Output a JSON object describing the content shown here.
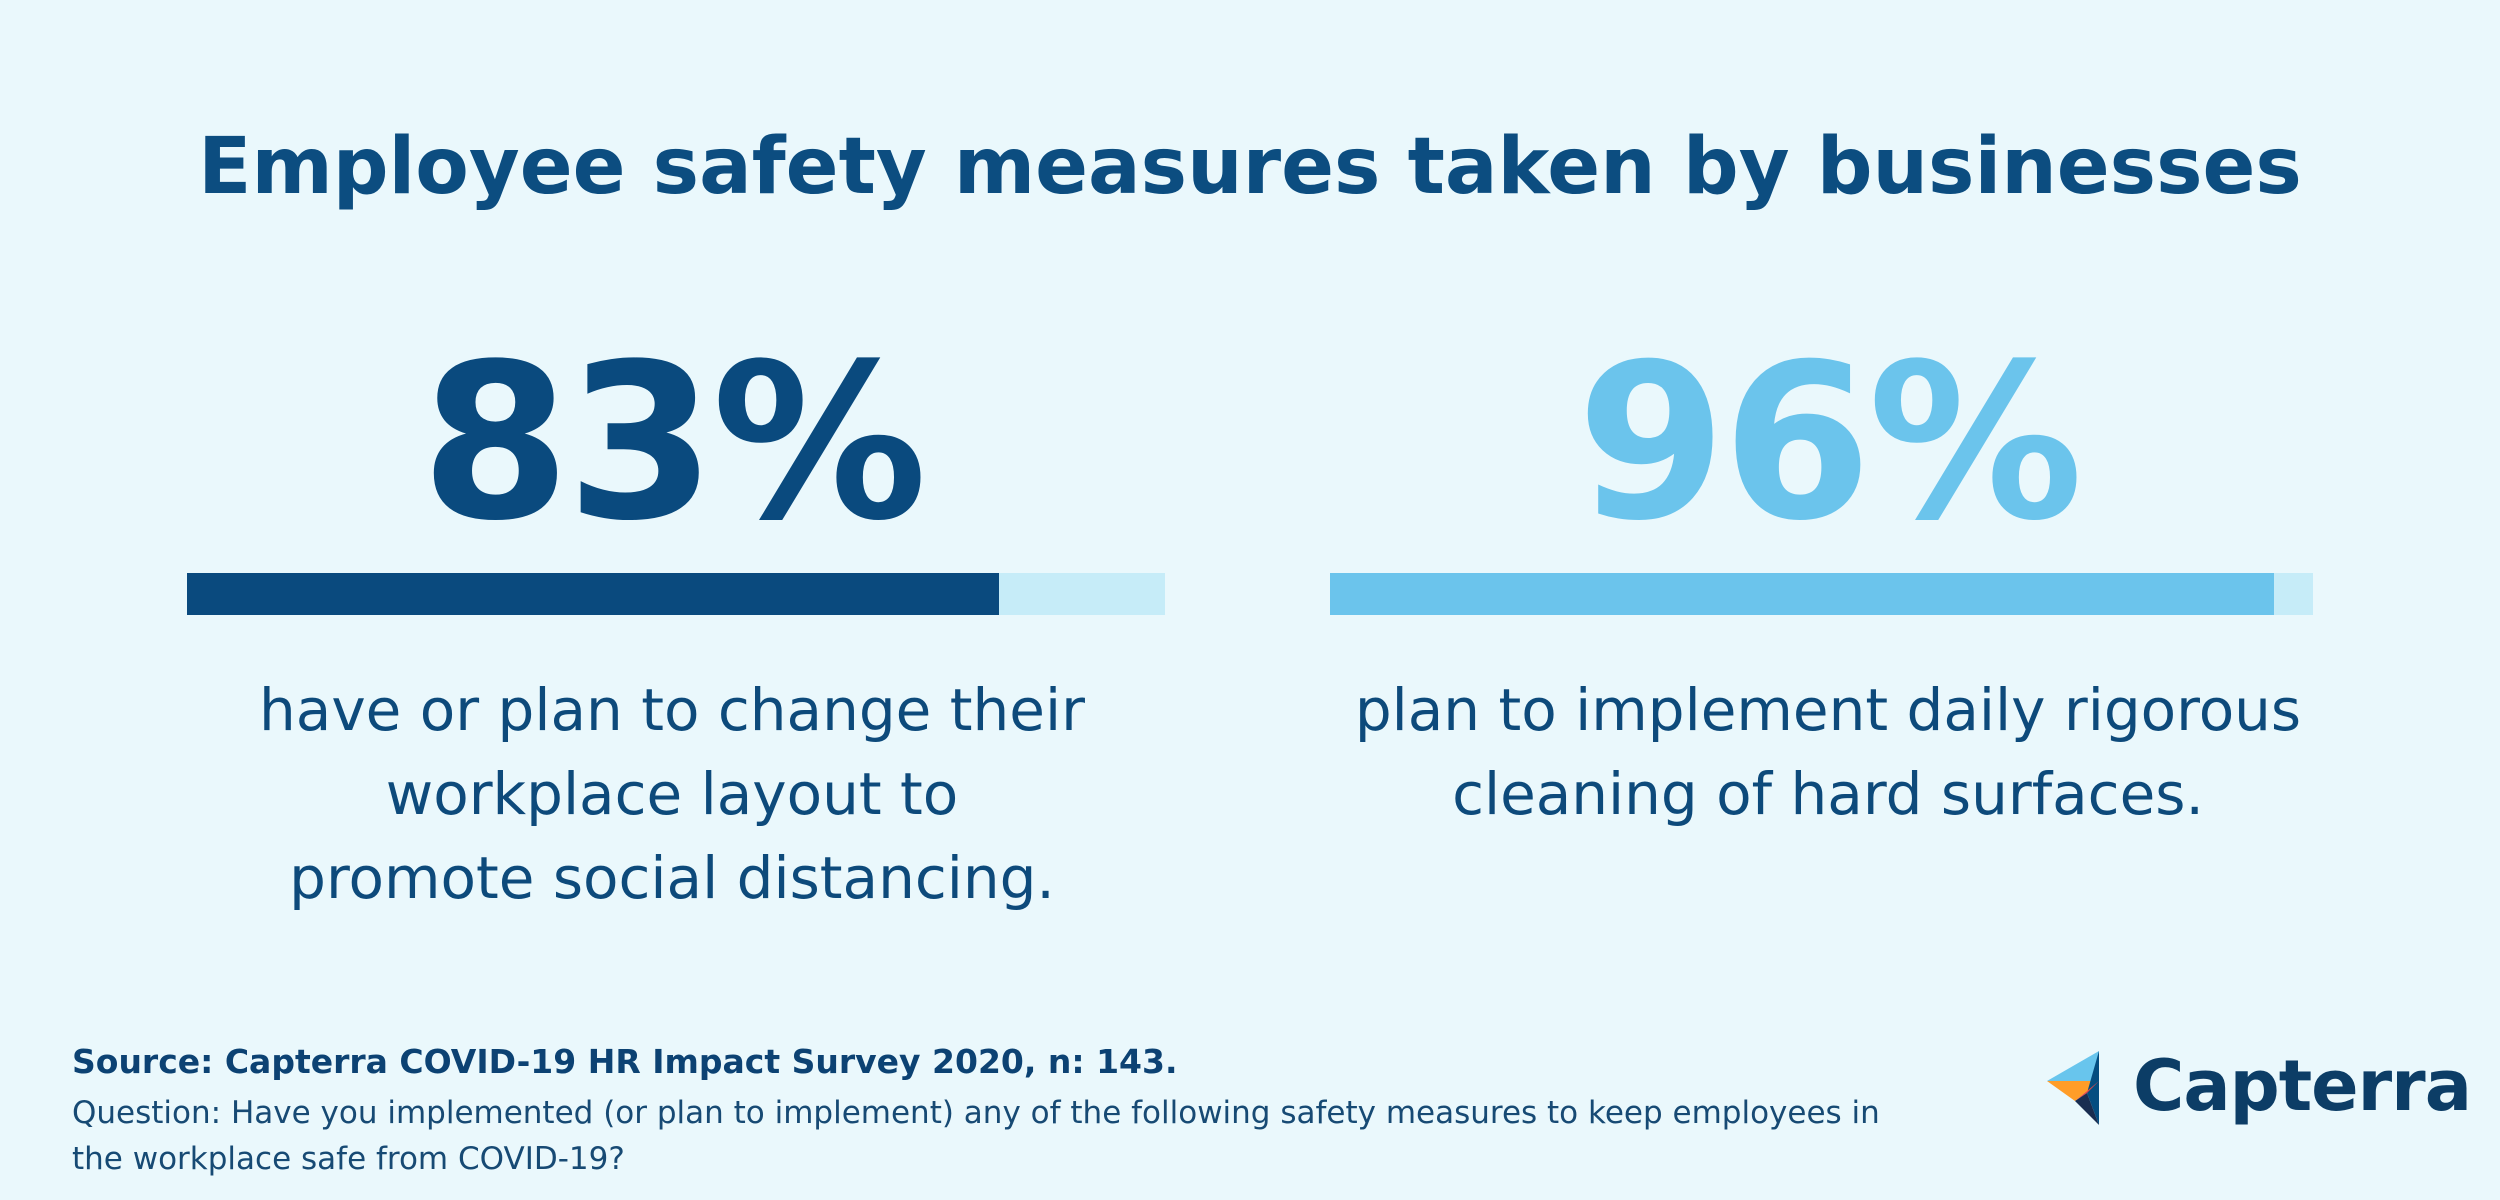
{
  "title": "Employee safety measures taken by businesses",
  "colors": {
    "background": "#eaf8fc",
    "dark_blue": "#0a4a7e",
    "light_blue": "#6bc4ec",
    "track": "#c6ecf8"
  },
  "chart_data": {
    "type": "bar",
    "title": "Employee safety measures taken by businesses",
    "categories": [
      "have or plan to change their workplace layout to promote social distancing.",
      "plan to implement daily rigorous cleaning of hard surfaces."
    ],
    "values": [
      83,
      96
    ],
    "ylim": [
      0,
      100
    ],
    "grid": false
  },
  "stats": [
    {
      "value_label": "83%",
      "value": 83,
      "color": "#0a4a7e",
      "desc_lines": [
        "have or plan to change their",
        "workplace layout to",
        "promote social distancing."
      ]
    },
    {
      "value_label": "96%",
      "value": 96,
      "color": "#6bc4ec",
      "desc_lines": [
        "plan to implement daily rigorous",
        "cleaning of hard surfaces."
      ]
    }
  ],
  "footer": {
    "source": "Source: Capterra COVID-19 HR Impact Survey 2020, n: 143.",
    "question_lines": [
      "Question: Have you implemented (or plan to implement) any of the following safety measures to keep employees in",
      "the workplace safe from COVID-19?"
    ]
  },
  "logo": {
    "text": "Capterra",
    "icon": "capterra-arrow-icon"
  }
}
